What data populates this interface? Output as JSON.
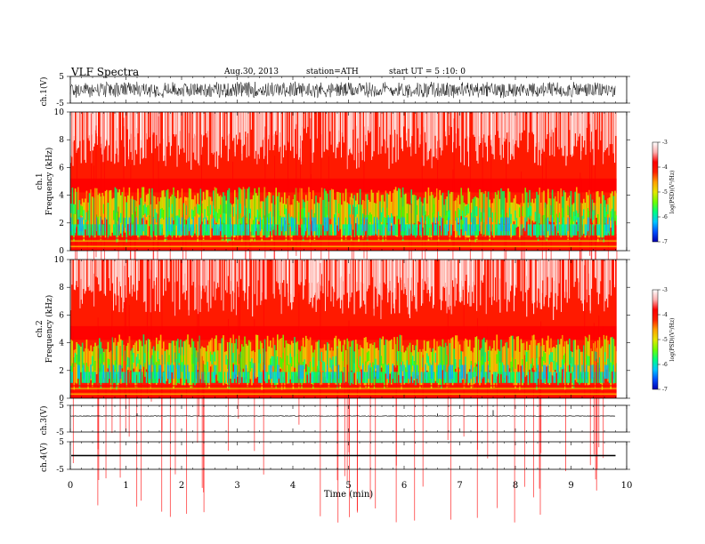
{
  "header": {
    "title": "VLF  Spectra",
    "date": "Aug.30, 2013",
    "station": "station=ATH",
    "start": "start  UT  =   5  :10: 0"
  },
  "colors": {
    "spectrum_scale": [
      "#0000b0",
      "#0050ff",
      "#00c8ff",
      "#00ff80",
      "#70ff00",
      "#e6e600",
      "#ffa000",
      "#ff2000",
      "#ff0000",
      "#ffb0b0",
      "#ffffff"
    ],
    "trace": "#000000"
  },
  "chart_data": [
    {
      "type": "line",
      "name": "ch1-waveform",
      "ylabel": "ch.1(V)",
      "ylim": [
        -5,
        5
      ],
      "yticks": [
        "5",
        "-5"
      ],
      "xlim": [
        0,
        10
      ],
      "data_extent_min": 9.8,
      "amplitude": 3.2
    },
    {
      "type": "heatmap",
      "name": "ch1-spectrum",
      "ylabel_1": "ch.1",
      "ylabel_2": "Frequency  (kHz)",
      "ylim": [
        0,
        10
      ],
      "yticks": [
        "0",
        "2",
        "4",
        "6",
        "8",
        "10"
      ],
      "xlim": [
        0,
        10
      ],
      "colorbar": {
        "label": "log(PSD)(V²/Hz)",
        "range": [
          -7,
          -3
        ],
        "ticks": [
          "-3",
          "-4",
          "-5",
          "-6",
          "-7"
        ]
      }
    },
    {
      "type": "heatmap",
      "name": "ch2-spectrum",
      "ylabel_1": "ch.2",
      "ylabel_2": "Frequency  (kHz)",
      "ylim": [
        0,
        10
      ],
      "yticks": [
        "0",
        "2",
        "4",
        "6",
        "8",
        "10"
      ],
      "xlim": [
        0,
        10
      ],
      "colorbar": {
        "label": "log(PSD)(V²/Hz)",
        "range": [
          -7,
          -3
        ],
        "ticks": [
          "-3",
          "-4",
          "-5",
          "-6",
          "-7"
        ]
      }
    },
    {
      "type": "line",
      "name": "ch3-waveform",
      "ylabel": "ch.3(V)",
      "ylim": [
        -5,
        5
      ],
      "yticks": [
        "5",
        "-5"
      ],
      "xlim": [
        0,
        10
      ],
      "baseline": 1.0,
      "spikes": [
        {
          "x": 7.6,
          "y": 3.2
        },
        {
          "x": 1.2,
          "y": 2.0
        },
        {
          "x": 6.6,
          "y": 1.9
        }
      ]
    },
    {
      "type": "line",
      "name": "ch4-waveform",
      "ylabel": "ch.4(V)",
      "ylim": [
        -5,
        5
      ],
      "yticks": [
        "5",
        "-5"
      ],
      "xlim": [
        0,
        10
      ],
      "baseline": 0.0,
      "amplitude": 0.25
    }
  ],
  "xaxis": {
    "label": "Time  (min)",
    "ticks": [
      "0",
      "1",
      "2",
      "3",
      "4",
      "5",
      "6",
      "7",
      "8",
      "9",
      "10"
    ]
  }
}
